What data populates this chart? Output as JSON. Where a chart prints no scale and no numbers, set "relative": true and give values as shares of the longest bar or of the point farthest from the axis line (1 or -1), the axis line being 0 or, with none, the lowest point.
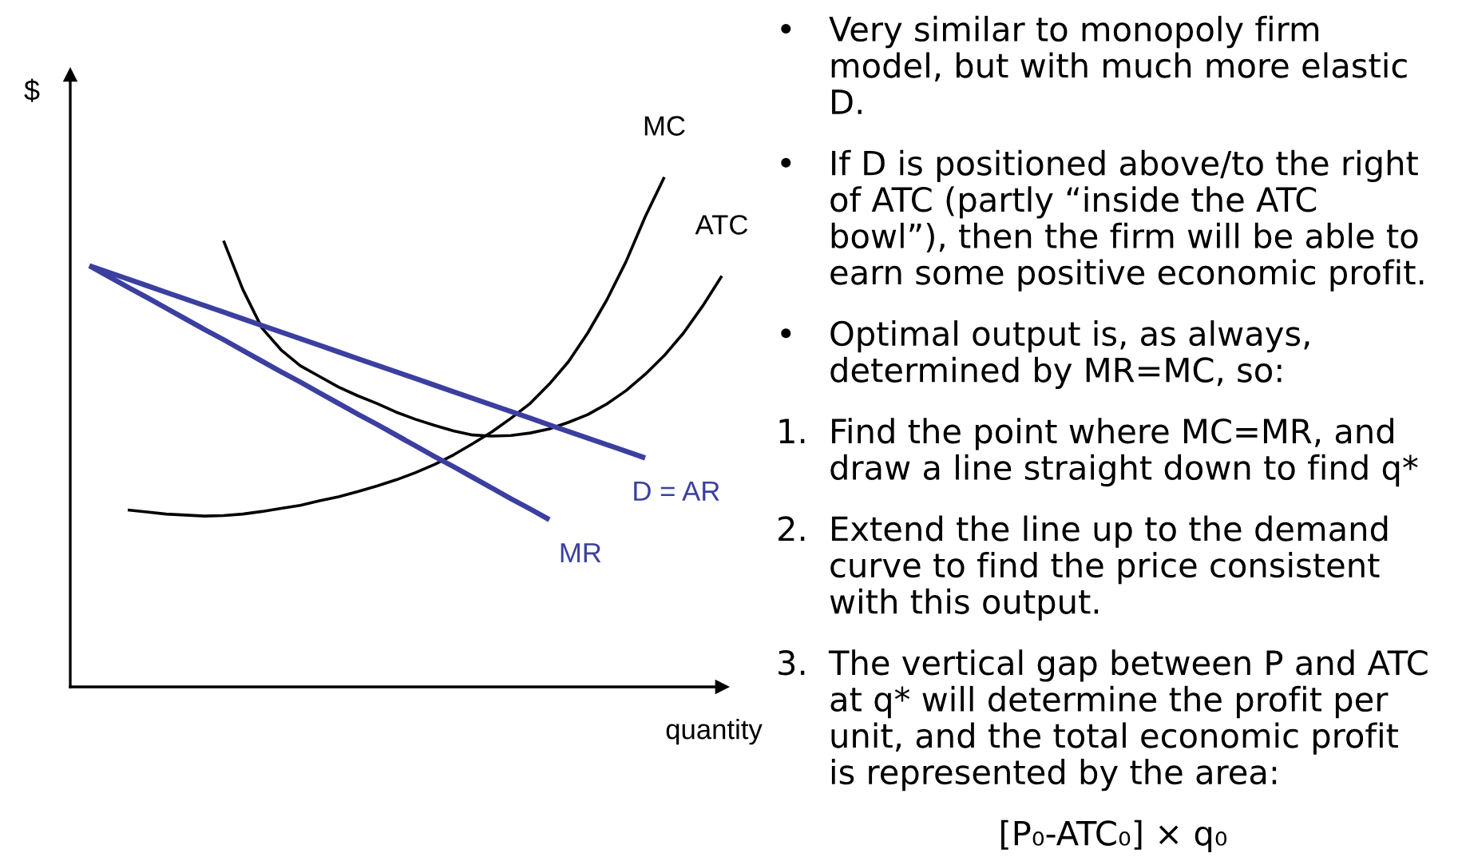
{
  "chart_data": {
    "type": "line",
    "relative": true,
    "xlabel": "quantity",
    "ylabel": "$",
    "categories": [
      null,
      null,
      null,
      null,
      null,
      null,
      null,
      null,
      null,
      null,
      null,
      null,
      null,
      null,
      null,
      null,
      null,
      null,
      null,
      null,
      null,
      null,
      null,
      null,
      null,
      null,
      null,
      null,
      null,
      null,
      null,
      null,
      null,
      null,
      null
    ],
    "series": [
      {
        "name": "MC",
        "color": "#000000",
        "values": [
          null,
          null,
          null,
          0.347,
          0.343,
          0.339,
          0.337,
          0.335,
          0.336,
          0.339,
          0.344,
          0.35,
          0.356,
          0.365,
          0.373,
          0.383,
          0.394,
          0.406,
          0.42,
          0.436,
          0.455,
          0.477,
          0.5,
          0.527,
          0.556,
          0.594,
          0.638,
          0.694,
          0.759,
          0.834,
          0.922,
          1.0,
          null,
          null,
          null
        ]
      },
      {
        "name": "ATC",
        "color": "#000000",
        "values": [
          null,
          null,
          null,
          null,
          null,
          null,
          null,
          null,
          0.875,
          0.78,
          0.704,
          0.661,
          0.63,
          0.609,
          0.588,
          0.571,
          0.556,
          0.539,
          0.525,
          0.513,
          0.502,
          0.494,
          0.492,
          0.493,
          0.498,
          0.506,
          0.519,
          0.534,
          0.555,
          0.581,
          0.613,
          0.65,
          0.694,
          0.747,
          0.806
        ]
      },
      {
        "name": "D = AR",
        "color": "#3b3f9f",
        "values": [
          null,
          0.826,
          0.813,
          0.8,
          0.787,
          0.774,
          0.761,
          0.748,
          0.735,
          0.722,
          0.709,
          0.696,
          0.683,
          0.67,
          0.657,
          0.644,
          0.631,
          0.618,
          0.605,
          0.592,
          0.579,
          0.566,
          0.553,
          0.54,
          0.527,
          0.514,
          0.501,
          0.488,
          0.475,
          0.462,
          0.449,
          null,
          null,
          null,
          null
        ]
      },
      {
        "name": "MR",
        "color": "#3b3f9f",
        "values": [
          null,
          0.826,
          0.805,
          0.784,
          0.764,
          0.743,
          0.722,
          0.701,
          0.681,
          0.66,
          0.639,
          0.618,
          0.598,
          0.577,
          0.556,
          0.535,
          0.515,
          0.494,
          0.473,
          0.452,
          0.432,
          0.411,
          0.39,
          0.369,
          0.349,
          0.328,
          null,
          null,
          null,
          null,
          null,
          null,
          null,
          null,
          null
        ]
      }
    ],
    "annotations": [
      "• Very similar to monopoly firm\nmodel, but with much more elastic\nD.",
      "• If D is positioned above/to the right\nof ATC (partly “inside the ATC\nbowl”), then the firm will be able to\nearn some positive economic profit.",
      "• Optimal output is, as always,\ndetermined by MR=MC, so:",
      "1. Find the point where MC=MR, and\ndraw a line straight down to find q*",
      "2. Extend the line up to the demand\ncurve to find the price consistent\nwith this output.",
      "3. The vertical gap between P and ATC\nat q* will determine the profit per\nunit, and the total economic profit\nis represented by the area:",
      "[P₀-ATC₀] × q₀"
    ]
  }
}
